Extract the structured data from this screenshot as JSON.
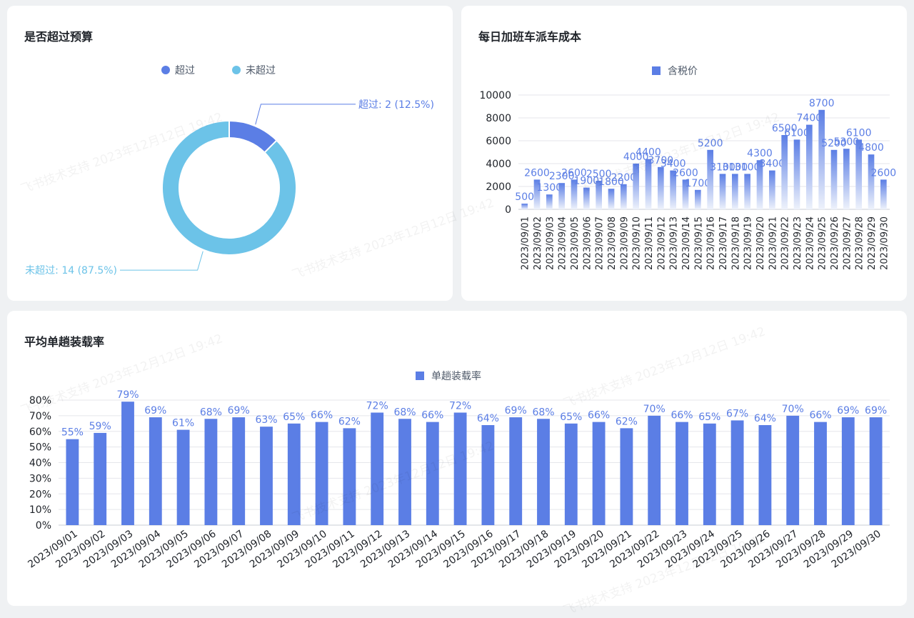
{
  "watermark": "飞书技术支持 2023年12月12日 19:42",
  "colors": {
    "exceed": "#5b7ee5",
    "not_exceed": "#6cc3e8",
    "bar": "#5b7ee5",
    "bar_fade": "#eef2fb"
  },
  "budget_card": {
    "title": "是否超过预算"
  },
  "cost_card": {
    "title": "每日加班车派车成本"
  },
  "load_card": {
    "title": "平均单趟装载率"
  },
  "chart_data": [
    {
      "type": "pie",
      "title": "是否超过预算",
      "legend_position": "top-center",
      "slices": [
        {
          "name": "超过",
          "value": 2,
          "percent": "12.5%",
          "label": "超过: 2 (12.5%)",
          "color": "#5b7ee5"
        },
        {
          "name": "未超过",
          "value": 14,
          "percent": "87.5%",
          "label": "未超过: 14 (87.5%)",
          "color": "#6cc3e8"
        }
      ]
    },
    {
      "type": "bar",
      "title": "每日加班车派车成本",
      "legend_position": "top-center",
      "categories": [
        "2023/09/01",
        "2023/09/02",
        "2023/09/03",
        "2023/09/04",
        "2023/09/05",
        "2023/09/06",
        "2023/09/07",
        "2023/09/08",
        "2023/09/09",
        "2023/09/10",
        "2023/09/11",
        "2023/09/12",
        "2023/09/13",
        "2023/09/14",
        "2023/09/15",
        "2023/09/16",
        "2023/09/17",
        "2023/09/18",
        "2023/09/19",
        "2023/09/20",
        "2023/09/21",
        "2023/09/22",
        "2023/09/23",
        "2023/09/24",
        "2023/09/25",
        "2023/09/26",
        "2023/09/27",
        "2023/09/28",
        "2023/09/29",
        "2023/09/30"
      ],
      "series": [
        {
          "name": "含税价",
          "values": [
            500,
            2600,
            1300,
            2300,
            2600,
            1900,
            2500,
            1800,
            2200,
            4000,
            4400,
            3700,
            3400,
            2600,
            1700,
            5200,
            3100,
            3100,
            3100,
            4300,
            3400,
            6500,
            6100,
            7400,
            8700,
            5200,
            5300,
            6100,
            4800,
            2600
          ]
        }
      ],
      "yticks": [
        "0",
        "2000",
        "4000",
        "6000",
        "8000",
        "10000"
      ],
      "ylim": [
        0,
        10000
      ],
      "grid": true
    },
    {
      "type": "bar",
      "title": "平均单趟装载率",
      "legend_position": "top-center",
      "categories": [
        "2023/09/01",
        "2023/09/02",
        "2023/09/03",
        "2023/09/04",
        "2023/09/05",
        "2023/09/06",
        "2023/09/07",
        "2023/09/08",
        "2023/09/09",
        "2023/09/10",
        "2023/09/11",
        "2023/09/12",
        "2023/09/13",
        "2023/09/14",
        "2023/09/15",
        "2023/09/16",
        "2023/09/17",
        "2023/09/18",
        "2023/09/19",
        "2023/09/20",
        "2023/09/21",
        "2023/09/22",
        "2023/09/23",
        "2023/09/24",
        "2023/09/25",
        "2023/09/26",
        "2023/09/27",
        "2023/09/28",
        "2023/09/29",
        "2023/09/30"
      ],
      "series": [
        {
          "name": "单趟装载率",
          "values": [
            55,
            59,
            79,
            69,
            61,
            68,
            69,
            63,
            65,
            66,
            62,
            72,
            68,
            66,
            72,
            64,
            69,
            68,
            65,
            66,
            62,
            70,
            66,
            65,
            67,
            64,
            70,
            66,
            69,
            69
          ],
          "labels": [
            "55%",
            "59%",
            "79%",
            "69%",
            "61%",
            "68%",
            "69%",
            "63%",
            "65%",
            "66%",
            "62%",
            "72%",
            "68%",
            "66%",
            "72%",
            "64%",
            "69%",
            "68%",
            "65%",
            "66%",
            "62%",
            "70%",
            "66%",
            "65%",
            "67%",
            "64%",
            "70%",
            "66%",
            "69%",
            "69%"
          ]
        }
      ],
      "yticks": [
        "0%",
        "10%",
        "20%",
        "30%",
        "40%",
        "50%",
        "60%",
        "70%",
        "80%"
      ],
      "ylim": [
        0,
        80
      ],
      "grid": true
    }
  ]
}
